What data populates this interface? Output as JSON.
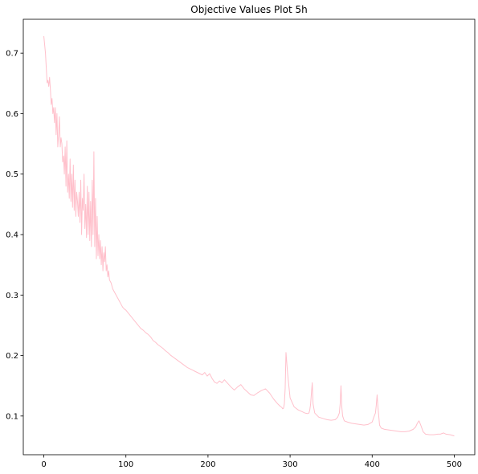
{
  "chart_data": {
    "type": "line",
    "title": "Objective Values Plot 5h",
    "xlabel": "",
    "ylabel": "",
    "xlim": [
      -25,
      525
    ],
    "ylim": [
      0.036,
      0.756
    ],
    "grid": false,
    "x_ticks": [
      0,
      100,
      200,
      300,
      400,
      500
    ],
    "x_tick_labels": [
      "0",
      "100",
      "200",
      "300",
      "400",
      "500"
    ],
    "y_ticks": [
      0.1,
      0.2,
      0.3,
      0.4,
      0.5,
      0.6,
      0.7
    ],
    "y_tick_labels": [
      "0.1",
      "0.2",
      "0.3",
      "0.4",
      "0.5",
      "0.6",
      "0.7"
    ],
    "series": [
      {
        "color": "#ffc0cb",
        "x": [
          0,
          2,
          4,
          5,
          6,
          7,
          8,
          9,
          10,
          11,
          12,
          13,
          14,
          15,
          16,
          17,
          18,
          19,
          20,
          21,
          22,
          23,
          24,
          25,
          26,
          27,
          28,
          29,
          30,
          31,
          32,
          33,
          34,
          35,
          36,
          37,
          38,
          39,
          40,
          41,
          42,
          43,
          44,
          45,
          46,
          47,
          48,
          49,
          50,
          51,
          52,
          53,
          54,
          55,
          56,
          57,
          58,
          59,
          60,
          61,
          62,
          63,
          64,
          65,
          66,
          67,
          68,
          69,
          70,
          71,
          72,
          73,
          74,
          75,
          76,
          77,
          78,
          79,
          80,
          82,
          84,
          86,
          88,
          90,
          92,
          94,
          96,
          98,
          100,
          103,
          106,
          109,
          112,
          115,
          118,
          121,
          124,
          127,
          130,
          133,
          136,
          139,
          142,
          145,
          148,
          151,
          154,
          157,
          160,
          163,
          166,
          169,
          172,
          175,
          178,
          181,
          184,
          187,
          190,
          193,
          196,
          199,
          202,
          205,
          208,
          211,
          214,
          217,
          220,
          224,
          228,
          232,
          236,
          240,
          244,
          248,
          252,
          256,
          260,
          265,
          270,
          275,
          280,
          285,
          288,
          290,
          291,
          292,
          293,
          294,
          295,
          297,
          300,
          305,
          310,
          315,
          318,
          321,
          323,
          324,
          325,
          326,
          327,
          328,
          330,
          335,
          340,
          345,
          350,
          355,
          358,
          360,
          361,
          362,
          363,
          364,
          366,
          370,
          375,
          380,
          385,
          390,
          395,
          400,
          402,
          404,
          405,
          406,
          407,
          408,
          409,
          411,
          415,
          420,
          425,
          430,
          435,
          440,
          445,
          450,
          453,
          455,
          457,
          458,
          460,
          462,
          465,
          470,
          475,
          480,
          483,
          485,
          487,
          490,
          495,
          500
        ],
        "y": [
          0.728,
          0.7,
          0.651,
          0.655,
          0.645,
          0.66,
          0.64,
          0.615,
          0.625,
          0.6,
          0.61,
          0.585,
          0.61,
          0.565,
          0.6,
          0.545,
          0.565,
          0.595,
          0.545,
          0.56,
          0.55,
          0.52,
          0.53,
          0.5,
          0.545,
          0.48,
          0.555,
          0.47,
          0.5,
          0.46,
          0.525,
          0.455,
          0.5,
          0.445,
          0.515,
          0.44,
          0.49,
          0.43,
          0.47,
          0.455,
          0.43,
          0.47,
          0.42,
          0.49,
          0.4,
          0.46,
          0.44,
          0.5,
          0.41,
          0.45,
          0.395,
          0.48,
          0.4,
          0.47,
          0.39,
          0.455,
          0.38,
          0.49,
          0.4,
          0.537,
          0.38,
          0.46,
          0.36,
          0.43,
          0.365,
          0.4,
          0.36,
          0.39,
          0.35,
          0.38,
          0.34,
          0.37,
          0.355,
          0.38,
          0.34,
          0.35,
          0.33,
          0.34,
          0.325,
          0.32,
          0.31,
          0.305,
          0.3,
          0.295,
          0.29,
          0.285,
          0.28,
          0.277,
          0.275,
          0.27,
          0.265,
          0.26,
          0.255,
          0.25,
          0.245,
          0.242,
          0.238,
          0.235,
          0.231,
          0.225,
          0.222,
          0.218,
          0.215,
          0.212,
          0.208,
          0.205,
          0.201,
          0.198,
          0.195,
          0.192,
          0.189,
          0.186,
          0.183,
          0.18,
          0.178,
          0.176,
          0.174,
          0.172,
          0.17,
          0.168,
          0.172,
          0.166,
          0.17,
          0.162,
          0.156,
          0.154,
          0.158,
          0.155,
          0.16,
          0.154,
          0.148,
          0.143,
          0.148,
          0.152,
          0.145,
          0.14,
          0.135,
          0.134,
          0.138,
          0.142,
          0.145,
          0.138,
          0.128,
          0.12,
          0.116,
          0.114,
          0.112,
          0.113,
          0.12,
          0.145,
          0.205,
          0.17,
          0.13,
          0.115,
          0.11,
          0.107,
          0.105,
          0.104,
          0.105,
          0.11,
          0.12,
          0.138,
          0.155,
          0.12,
          0.105,
          0.098,
          0.096,
          0.094,
          0.093,
          0.094,
          0.098,
          0.105,
          0.12,
          0.15,
          0.115,
          0.1,
          0.092,
          0.09,
          0.088,
          0.087,
          0.086,
          0.085,
          0.086,
          0.09,
          0.098,
          0.105,
          0.118,
          0.135,
          0.115,
          0.1,
          0.085,
          0.08,
          0.078,
          0.077,
          0.076,
          0.075,
          0.074,
          0.074,
          0.075,
          0.078,
          0.082,
          0.088,
          0.092,
          0.089,
          0.082,
          0.074,
          0.07,
          0.069,
          0.069,
          0.07,
          0.07,
          0.071,
          0.072,
          0.07,
          0.069,
          0.067
        ]
      }
    ]
  }
}
